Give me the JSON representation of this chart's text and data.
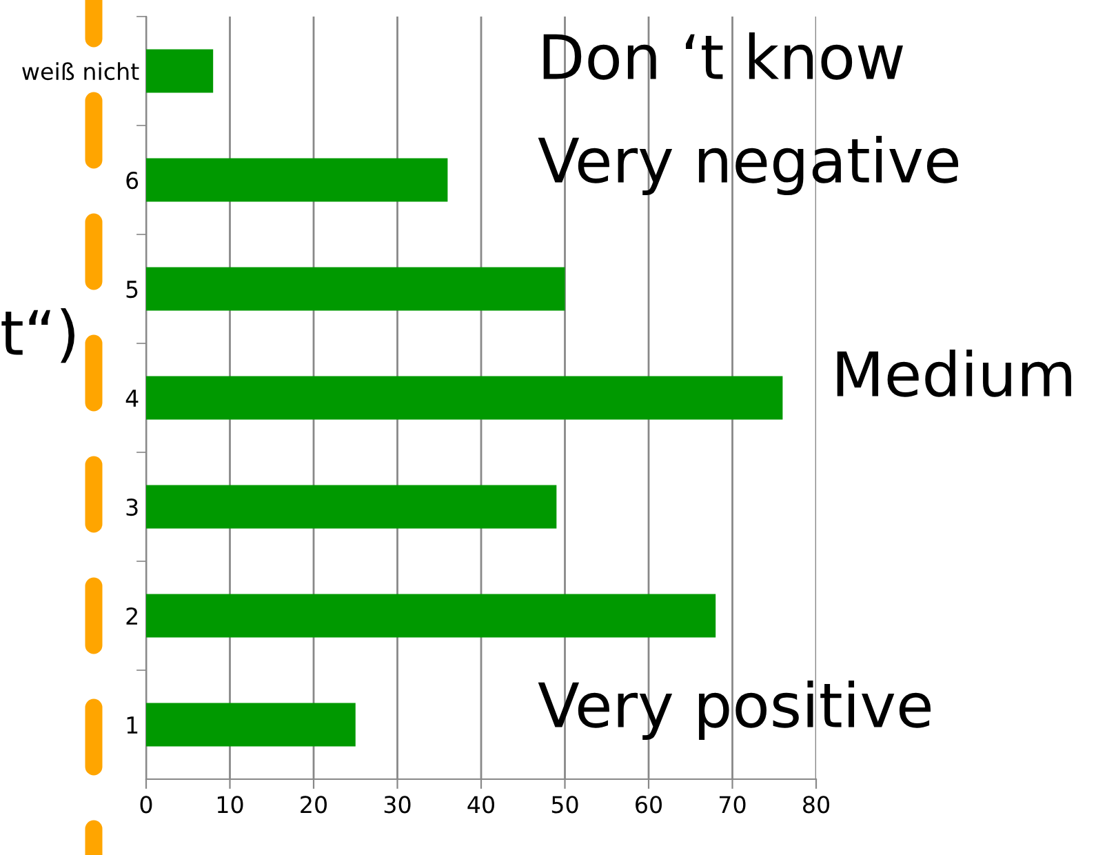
{
  "chart_data": {
    "type": "bar",
    "orientation": "horizontal",
    "categories": [
      "weiß nicht",
      "6",
      "5",
      "4",
      "3",
      "2",
      "1"
    ],
    "values": [
      8,
      36,
      50,
      76,
      49,
      68,
      25
    ],
    "color": "#009900",
    "xlim": [
      0,
      80
    ],
    "xticks": [
      0,
      10,
      20,
      30,
      40,
      50,
      60,
      70,
      80
    ],
    "grid": "x",
    "annotations": [
      "Don ‘t know",
      "Very negative",
      "Medium",
      "Very positive",
      "t“)"
    ]
  }
}
